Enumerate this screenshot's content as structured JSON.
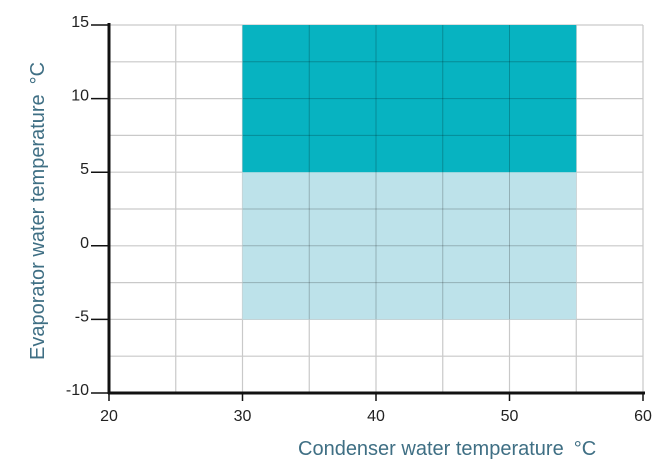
{
  "chart_data": {
    "type": "area",
    "xlabel": "Condenser water temperature",
    "xunit": "°C",
    "ylabel": "Evaporator water temperature",
    "yunit": "°C",
    "xlim": [
      20,
      60
    ],
    "ylim": [
      -10,
      15
    ],
    "x_ticks": [
      "20",
      "30",
      "40",
      "50",
      "60"
    ],
    "y_ticks": [
      "15",
      "10",
      "5",
      "0",
      "-5",
      "-10"
    ],
    "x_minor_step": 5,
    "y_minor_step": 2.5,
    "grid": true,
    "regions": [
      {
        "x": [
          30,
          55
        ],
        "y": [
          -5,
          5
        ],
        "color": "#bde2ea"
      },
      {
        "x": [
          30,
          55
        ],
        "y": [
          5,
          15
        ],
        "color": "#07b3c1"
      }
    ],
    "colors": {
      "axis_title": "#3f6f84",
      "grid": "#c9c9c9",
      "axis": "#111111"
    }
  }
}
